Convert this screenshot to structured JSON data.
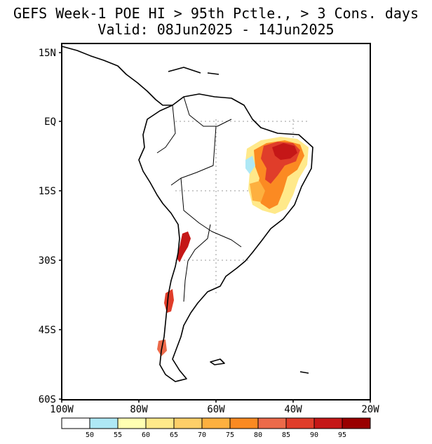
{
  "title": {
    "line1": "GEFS Week-1 POE HI > 95th Pctle., > 3 Cons. days",
    "line2": "Valid: 08Jun2025 - 14Jun2025"
  },
  "map": {
    "y_ticks": [
      "15N",
      "EQ",
      "15S",
      "30S",
      "45S",
      "60S"
    ],
    "x_ticks": [
      "100W",
      "80W",
      "60W",
      "40W",
      "20W"
    ],
    "lon_range": [
      -100,
      -20
    ],
    "lat_range": [
      -60,
      15
    ]
  },
  "legend": {
    "labels": [
      "50",
      "55",
      "60",
      "65",
      "70",
      "75",
      "80",
      "85",
      "90",
      "95"
    ],
    "colors": [
      "#ffffff",
      "#aee8f5",
      "#ffffb2",
      "#ffe98a",
      "#fecf69",
      "#fdb03f",
      "#fb8a22",
      "#ec6a4a",
      "#e03d2a",
      "#c51717",
      "#990000"
    ]
  },
  "colors": {
    "coast": "#000000",
    "grid": "#9a9a9a"
  }
}
